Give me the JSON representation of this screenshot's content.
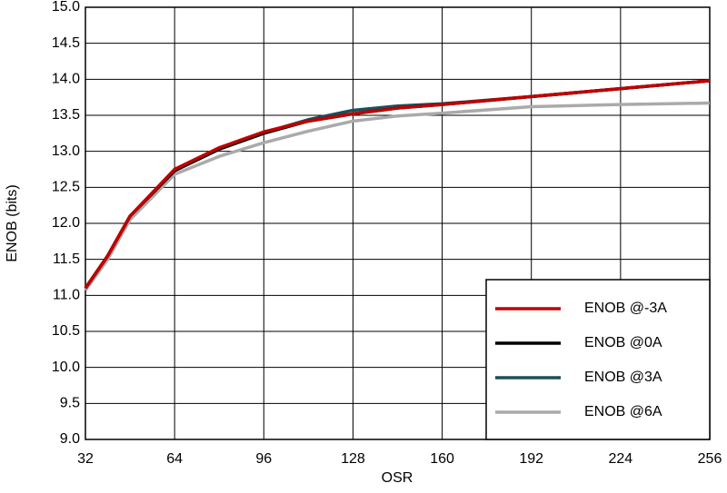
{
  "chart_data": {
    "type": "line",
    "xlabel": "OSR",
    "ylabel": "ENOB (bits)",
    "x": [
      32,
      40,
      48,
      64,
      80,
      96,
      112,
      128,
      144,
      160,
      192,
      224,
      256
    ],
    "series": [
      {
        "name": "ENOB @-3A",
        "color": "#c00000",
        "values": [
          11.1,
          11.55,
          12.1,
          12.75,
          13.05,
          13.27,
          13.42,
          13.52,
          13.6,
          13.65,
          13.76,
          13.87,
          13.98
        ]
      },
      {
        "name": "ENOB @0A",
        "color": "#000000",
        "values": [
          11.1,
          11.55,
          12.1,
          12.73,
          13.03,
          13.25,
          13.42,
          13.52,
          13.6,
          13.65,
          13.76,
          13.87,
          13.98
        ]
      },
      {
        "name": "ENOB @3A",
        "color": "#1b4f5a",
        "values": [
          11.1,
          11.55,
          12.1,
          12.74,
          13.03,
          13.26,
          13.44,
          13.57,
          13.63,
          13.66,
          13.76,
          13.87,
          13.98
        ]
      },
      {
        "name": "ENOB @6A",
        "color": "#aaaaaa",
        "values": [
          11.07,
          11.5,
          12.05,
          12.68,
          12.93,
          13.12,
          13.28,
          13.42,
          13.49,
          13.53,
          13.62,
          13.65,
          13.67
        ]
      }
    ],
    "xlim": [
      32,
      256
    ],
    "xticks": [
      32,
      64,
      96,
      128,
      160,
      192,
      224,
      256
    ],
    "ylim": [
      9,
      15
    ],
    "yticks": [
      {
        "value": 9,
        "label": "9.0"
      },
      9.5,
      {
        "value": 10,
        "label": "10.0"
      },
      10.5,
      {
        "value": 11,
        "label": "11.0"
      },
      11.5,
      {
        "value": 12,
        "label": "12.0"
      },
      12.5,
      {
        "value": 13,
        "label": "13.0"
      },
      13.5,
      {
        "value": 14,
        "label": "14.0"
      },
      14.5,
      {
        "value": 15,
        "label": "15.0"
      }
    ],
    "grid": true,
    "legend": "lower right"
  }
}
